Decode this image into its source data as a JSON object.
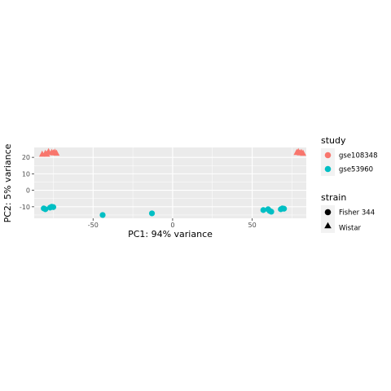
{
  "chart_data": {
    "type": "scatter",
    "title": "",
    "xlabel": "PC1: 94% variance",
    "ylabel": "PC2: 5% variance",
    "xlim": [
      -87,
      84
    ],
    "ylim": [
      -17,
      26
    ],
    "x_ticks": [
      -50,
      0,
      50
    ],
    "y_ticks": [
      -10,
      0,
      10,
      20
    ],
    "grid": true,
    "legend_position": "right",
    "legends": [
      {
        "title": "study",
        "entries": [
          {
            "label": "gse108348",
            "color": "#F8766D",
            "shape": "circle"
          },
          {
            "label": "gse53960",
            "color": "#00BFC4",
            "shape": "circle"
          }
        ]
      },
      {
        "title": "strain",
        "entries": [
          {
            "label": "Fisher 344",
            "color": "#000000",
            "shape": "circle"
          },
          {
            "label": "Wistar",
            "color": "#000000",
            "shape": "triangle"
          }
        ]
      }
    ],
    "series": [
      {
        "study": "gse108348",
        "strain": "Wistar",
        "color": "#F8766D",
        "shape": "triangle",
        "points": [
          [
            -82,
            22
          ],
          [
            -80,
            22.5
          ],
          [
            -79,
            22
          ],
          [
            -78,
            23.5
          ],
          [
            -76,
            23
          ],
          [
            -75,
            22.8
          ],
          [
            -74,
            23.2
          ],
          [
            -73,
            22.6
          ],
          [
            78,
            23
          ],
          [
            79,
            23.5
          ],
          [
            80,
            22.8
          ],
          [
            81,
            23
          ],
          [
            82,
            22.5
          ]
        ]
      },
      {
        "study": "gse53960",
        "strain": "Fisher 344",
        "color": "#00BFC4",
        "shape": "circle",
        "points": [
          [
            -81,
            -11
          ],
          [
            -80,
            -11.5
          ],
          [
            -77,
            -10.5
          ],
          [
            -76,
            -10
          ],
          [
            -75,
            -10.2
          ],
          [
            -44,
            -15
          ],
          [
            -13,
            -14
          ],
          [
            57,
            -12
          ],
          [
            60,
            -11.5
          ],
          [
            61,
            -12.5
          ],
          [
            62,
            -13
          ],
          [
            68,
            -11.5
          ],
          [
            69,
            -11
          ],
          [
            70,
            -11.2
          ]
        ]
      }
    ]
  }
}
